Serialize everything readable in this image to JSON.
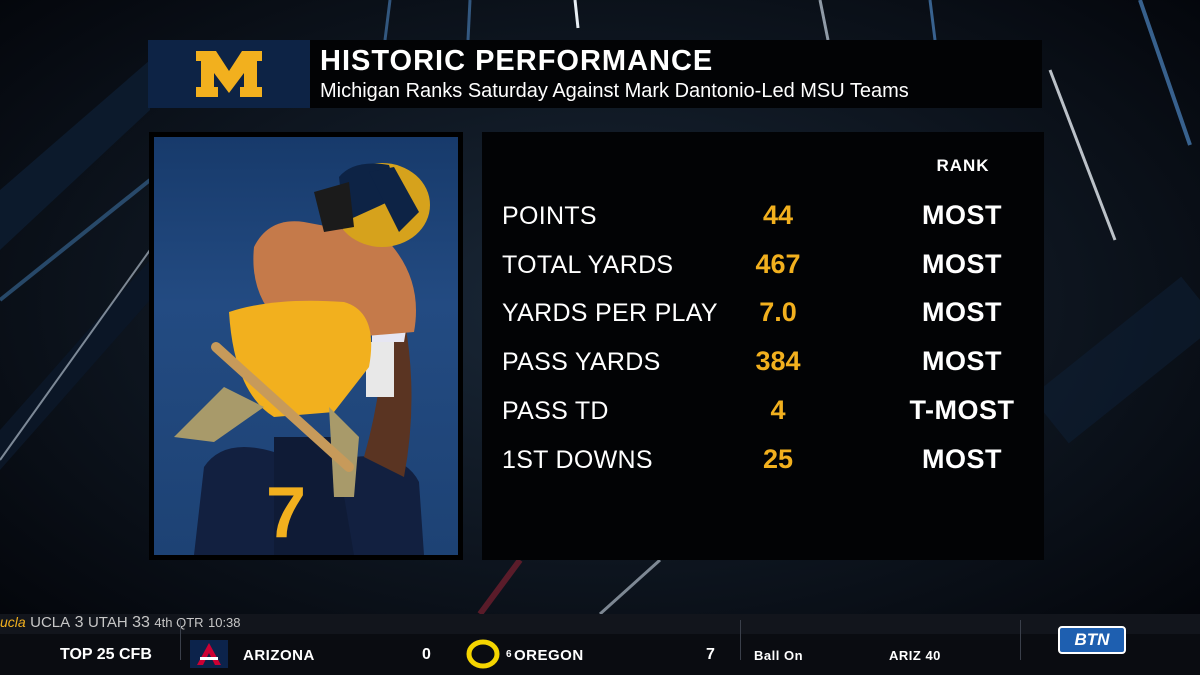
{
  "header": {
    "logo_letter": "M",
    "title": "HISTORIC PERFORMANCE",
    "subtitle": "Michigan Ranks Saturday Against Mark Dantonio-Led MSU Teams"
  },
  "stats": {
    "rank_header": "RANK",
    "rows": [
      {
        "label": "POINTS",
        "value": "44",
        "rank": "MOST"
      },
      {
        "label": "TOTAL YARDS",
        "value": "467",
        "rank": "MOST"
      },
      {
        "label": "YARDS PER PLAY",
        "value": "7.0",
        "rank": "MOST"
      },
      {
        "label": "PASS YARDS",
        "value": "384",
        "rank": "MOST"
      },
      {
        "label": "PASS TD",
        "value": "4",
        "rank": "T-MOST"
      },
      {
        "label": "1ST DOWNS",
        "value": "25",
        "rank": "MOST"
      }
    ]
  },
  "photo": {
    "jersey_number": "7"
  },
  "ticker": {
    "title": "TOP 25 CFB",
    "prev_game": {
      "team1_logo": "ucla",
      "team1": "UCLA",
      "team1_score": "3",
      "team2": "UTAH",
      "team2_score": "33",
      "status": "4th QTR",
      "clock": "10:38"
    },
    "current_game": {
      "team1": "ARIZONA",
      "team1_score": "0",
      "team2_rank": "6",
      "team2": "OREGON",
      "team2_score": "7",
      "status": "Ball On",
      "ball_spot": "ARIZ 40"
    },
    "network": "BTN"
  },
  "colors": {
    "maize": "#f2b01e",
    "michigan_blue": "#0d2345",
    "panel": "#020305"
  }
}
